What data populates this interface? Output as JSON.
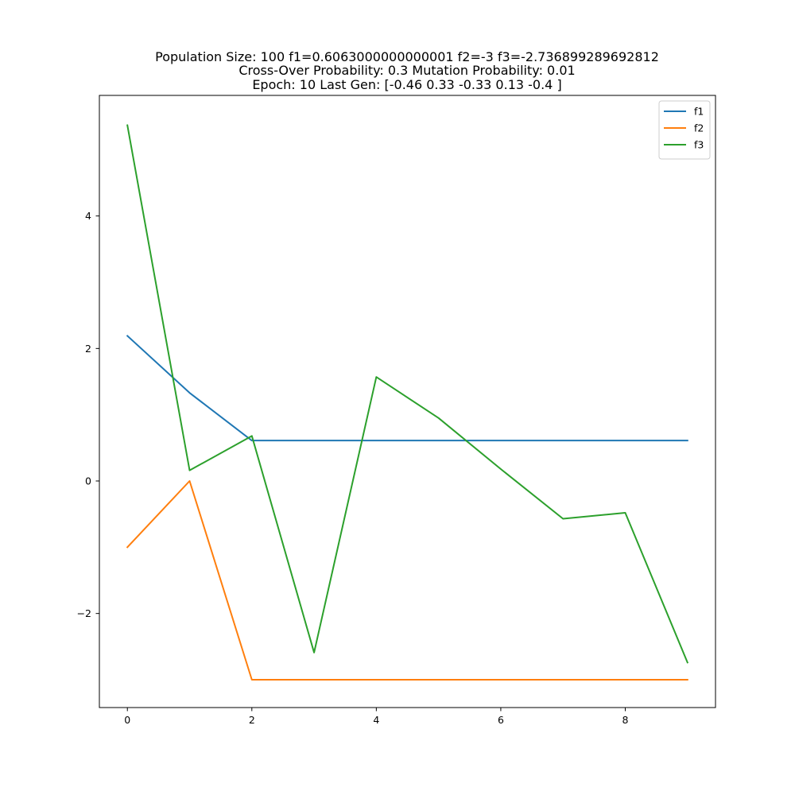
{
  "chart_data": {
    "type": "line",
    "title_lines": [
      "Population Size: 100 f1=0.6063000000000001 f2=-3 f3=-2.736899289692812",
      "Cross-Over Probability: 0.3 Mutation Probability: 0.01",
      "Epoch: 10 Last Gen: [-0.46  0.33 -0.33  0.13 -0.4 ]"
    ],
    "xlabel": "",
    "ylabel": "",
    "x": [
      0,
      1,
      2,
      3,
      4,
      5,
      6,
      7,
      8,
      9
    ],
    "xlim": [
      -0.45,
      9.45
    ],
    "ylim": [
      -3.42,
      5.82
    ],
    "x_ticks": [
      0,
      2,
      4,
      6,
      8
    ],
    "x_tick_labels": [
      "0",
      "2",
      "4",
      "6",
      "8"
    ],
    "y_ticks": [
      -2,
      0,
      2,
      4
    ],
    "y_tick_labels": [
      "−2",
      "0",
      "2",
      "4"
    ],
    "grid": false,
    "legend_position": "top-right",
    "series": [
      {
        "name": "f1",
        "color": "#1f77b4",
        "values": [
          2.19,
          1.33,
          0.61,
          0.61,
          0.61,
          0.61,
          0.61,
          0.61,
          0.61,
          0.61
        ]
      },
      {
        "name": "f2",
        "color": "#ff7f0e",
        "values": [
          -1,
          0,
          -3,
          -3,
          -3,
          -3,
          -3,
          -3,
          -3,
          -3
        ]
      },
      {
        "name": "f3",
        "color": "#2ca02c",
        "values": [
          5.37,
          0.16,
          0.68,
          -2.59,
          1.57,
          0.95,
          0.18,
          -0.57,
          -0.48,
          -2.74
        ]
      }
    ]
  }
}
